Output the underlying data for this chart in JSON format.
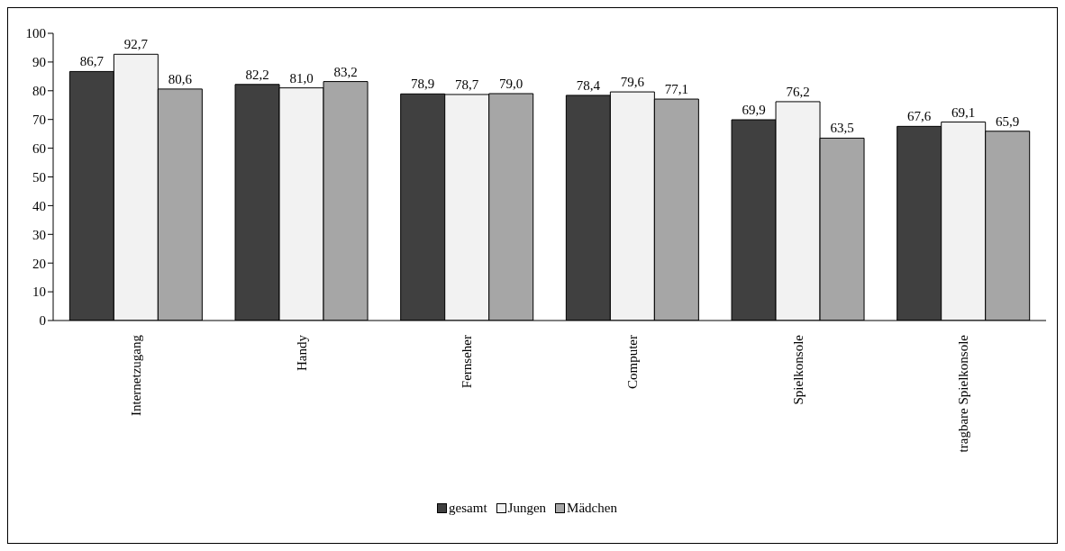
{
  "chart_data": {
    "type": "bar",
    "categories": [
      "Internetzugang",
      "Handy",
      "Fernseher",
      "Computer",
      "Spielkonsole",
      "tragbare Spielkonsole"
    ],
    "series": [
      {
        "name": "gesamt",
        "color": "#404040",
        "values": [
          86.7,
          82.2,
          78.9,
          78.4,
          69.9,
          67.6
        ],
        "value_labels": [
          "86,7",
          "82,2",
          "78,9",
          "78,4",
          "69,9",
          "67,6"
        ]
      },
      {
        "name": "Jungen",
        "color": "#f2f2f2",
        "values": [
          92.7,
          81.0,
          78.7,
          79.6,
          76.2,
          69.1
        ],
        "value_labels": [
          "92,7",
          "81,0",
          "78,7",
          "79,6",
          "76,2",
          "69,1"
        ]
      },
      {
        "name": "Mädchen",
        "color": "#a6a6a6",
        "values": [
          80.6,
          83.2,
          79.0,
          77.1,
          63.5,
          65.9
        ],
        "value_labels": [
          "80,6",
          "83,2",
          "79,0",
          "77,1",
          "63,5",
          "65,9"
        ]
      }
    ],
    "ylim": [
      0,
      100
    ],
    "yticks": [
      0,
      10,
      20,
      30,
      40,
      50,
      60,
      70,
      80,
      90,
      100
    ],
    "grid": false,
    "legend": "bottom"
  }
}
